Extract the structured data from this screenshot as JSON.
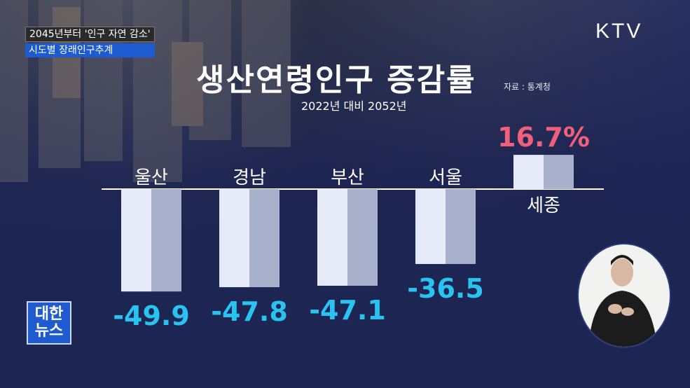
{
  "headline": {
    "line1": "2045년부터 '인구 자연 감소'",
    "line2": "시도별 장래인구추계"
  },
  "broadcaster_logo": "KTV",
  "program_logo": {
    "line1": "대한",
    "line2": "뉴스"
  },
  "chart_data": {
    "type": "bar",
    "title": "생산연령인구 증감률",
    "subtitle": "2022년 대비 2052년",
    "source": "자료 : 통계청",
    "categories": [
      "울산",
      "경남",
      "부산",
      "서울",
      "세종"
    ],
    "values": [
      -49.9,
      -47.8,
      -47.1,
      -36.5,
      16.7
    ],
    "value_labels": [
      "-49.9",
      "-47.8",
      "-47.1",
      "-36.5",
      "16.7%"
    ],
    "ylim": [
      -55,
      20
    ],
    "colors": {
      "bar_light": "#e6e9f8",
      "bar_dark": "#a8b0cc",
      "negative_label": "#29c3f2",
      "positive_label": "#f0607a",
      "baseline": "#ffffff"
    }
  }
}
